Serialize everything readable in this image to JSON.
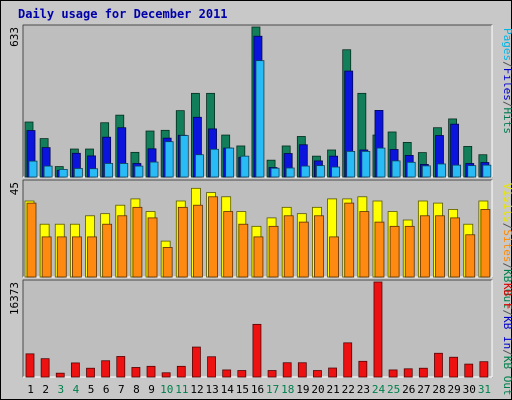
{
  "chart_data": {
    "type": "bar",
    "title": "Daily usage for December 2011",
    "categories": [
      "1",
      "2",
      "3",
      "4",
      "5",
      "6",
      "7",
      "8",
      "9",
      "10",
      "11",
      "12",
      "13",
      "14",
      "15",
      "16",
      "17",
      "18",
      "19",
      "20",
      "21",
      "22",
      "23",
      "24",
      "25",
      "26",
      "27",
      "28",
      "29",
      "30",
      "31"
    ],
    "weekend_days": [
      "3",
      "4",
      "10",
      "11",
      "17",
      "18",
      "24",
      "25",
      "31"
    ],
    "panels": [
      {
        "id": "top",
        "ymax_label": "633",
        "ylim": [
          0,
          633
        ],
        "axis_labels": [
          {
            "text": "Pages",
            "color": "#00b4e6"
          },
          {
            "text": "/",
            "color": "#555555"
          },
          {
            "text": "Files",
            "color": "#0000cc"
          },
          {
            "text": "/",
            "color": "#555555"
          },
          {
            "text": "Hits",
            "color": "#007a4e"
          }
        ],
        "series": [
          {
            "name": "Hits",
            "color": "#127f5a",
            "values": [
              232,
              162,
              44,
              118,
              118,
              229,
              261,
              104,
              194,
              197,
              280,
              353,
              353,
              177,
              131,
              633,
              71,
              131,
              171,
              88,
              114,
              537,
              353,
              177,
              190,
              146,
              103,
              208,
              245,
              129,
              94
            ]
          },
          {
            "name": "Files",
            "color": "#0a14dd",
            "values": [
              196,
              124,
              28,
              100,
              89,
              168,
              208,
              57,
              119,
              164,
              176,
              252,
              203,
              122,
              83,
              594,
              40,
              99,
              136,
              68,
              88,
              447,
              114,
              281,
              116,
              91,
              53,
              175,
              223,
              57,
              61
            ]
          },
          {
            "name": "Pages",
            "color": "#29bbf5",
            "values": [
              67,
              46,
              32,
              36,
              35,
              57,
              57,
              46,
              63,
              149,
              175,
              94,
              117,
              122,
              88,
              491,
              37,
              38,
              46,
              48,
              42,
              108,
              108,
              122,
              68,
              62,
              47,
              55,
              50,
              48,
              50
            ]
          }
        ]
      },
      {
        "id": "mid",
        "ymax_label": "45",
        "ylim": [
          0,
          45
        ],
        "axis_labels": [
          {
            "text": "Visits",
            "color": "#e6e600"
          },
          {
            "text": "/",
            "color": "#555555"
          },
          {
            "text": "Sites",
            "color": "#ff8800"
          },
          {
            "text": "/",
            "color": "#555555"
          },
          {
            "text": "KB Out",
            "color": "#00804c"
          }
        ],
        "series": [
          {
            "name": "Visits",
            "color": "#ffff00",
            "values": [
              36,
              25,
              25,
              25,
              29,
              30,
              34,
              37,
              31,
              17,
              36,
              42,
              40,
              38,
              31,
              24,
              28,
              33,
              30,
              33,
              37,
              37,
              38,
              36,
              31,
              27,
              36,
              35,
              32,
              25,
              36
            ]
          },
          {
            "name": "Sites",
            "color": "#ff8a12",
            "values": [
              35,
              19,
              19,
              19,
              19,
              25,
              29,
              33,
              28,
              14,
              33,
              34,
              38,
              31,
              25,
              19,
              24,
              29,
              26,
              29,
              19,
              35,
              31,
              26,
              24,
              24,
              29,
              29,
              28,
              20,
              32
            ]
          }
        ]
      },
      {
        "id": "bottom",
        "ymax_label": "16373",
        "ylim": [
          0,
          16373
        ],
        "axis_labels": [
          {
            "text": "KB F",
            "color": "#dd0000"
          },
          {
            "text": "/",
            "color": "#555555"
          },
          {
            "text": "KB In",
            "color": "#0000cc"
          },
          {
            "text": "/",
            "color": "#555555"
          },
          {
            "text": "KB Out",
            "color": "#00804c"
          }
        ],
        "series": [
          {
            "name": "KB F",
            "color": "#ee1111",
            "values": [
              3990,
              3155,
              658,
              2425,
              1512,
              2802,
              3536,
              1646,
              1841,
              729,
              1841,
              5160,
              3490,
              1216,
              1117,
              9074,
              1117,
              2457,
              2457,
              1117,
              1546,
              5888,
              2704,
              16373,
              1216,
              1414,
              1512,
              4089,
              3405,
              2221,
              2638
            ]
          }
        ]
      }
    ]
  }
}
